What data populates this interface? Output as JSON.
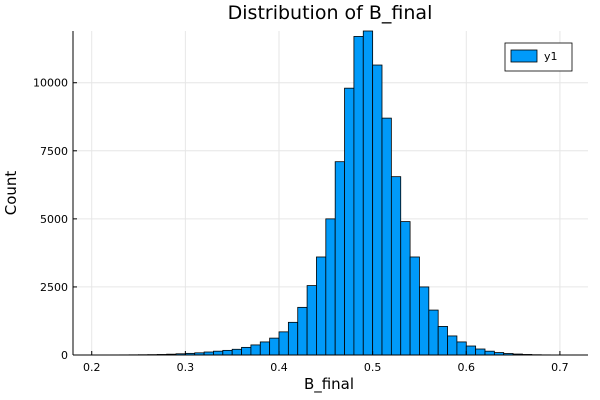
{
  "chart_data": {
    "type": "bar",
    "title": "Distribution of B_final",
    "xlabel": "B_final",
    "ylabel": "Count",
    "xlim": [
      0.18,
      0.73
    ],
    "ylim": [
      0,
      11900
    ],
    "xticks": [
      0.2,
      0.3,
      0.4,
      0.5,
      0.6,
      0.7
    ],
    "xtick_labels": [
      "0.2",
      "0.3",
      "0.4",
      "0.5",
      "0.6",
      "0.7"
    ],
    "yticks": [
      0,
      2500,
      5000,
      7500,
      10000
    ],
    "ytick_labels": [
      "0",
      "2500",
      "5000",
      "7500",
      "10000"
    ],
    "grid": true,
    "legend_position": "top-right",
    "bar_color": "#009af9",
    "series": [
      {
        "name": "y1",
        "bin_width": 0.01,
        "bin_starts": [
          0.2,
          0.21,
          0.22,
          0.23,
          0.24,
          0.25,
          0.26,
          0.27,
          0.28,
          0.29,
          0.3,
          0.31,
          0.32,
          0.33,
          0.34,
          0.35,
          0.36,
          0.37,
          0.38,
          0.39,
          0.4,
          0.41,
          0.42,
          0.43,
          0.44,
          0.45,
          0.46,
          0.47,
          0.48,
          0.49,
          0.5,
          0.51,
          0.52,
          0.53,
          0.54,
          0.55,
          0.56,
          0.57,
          0.58,
          0.59,
          0.6,
          0.61,
          0.62,
          0.63,
          0.64,
          0.65,
          0.66,
          0.67,
          0.68,
          0.69
        ],
        "values": [
          2,
          3,
          4,
          5,
          7,
          10,
          14,
          20,
          30,
          45,
          60,
          80,
          110,
          140,
          170,
          210,
          280,
          370,
          480,
          620,
          850,
          1200,
          1750,
          2550,
          3600,
          5000,
          7100,
          9800,
          11700,
          11900,
          10650,
          8700,
          6550,
          4900,
          3600,
          2500,
          1650,
          1050,
          700,
          480,
          330,
          220,
          140,
          90,
          55,
          35,
          20,
          10,
          5,
          2
        ]
      }
    ]
  }
}
